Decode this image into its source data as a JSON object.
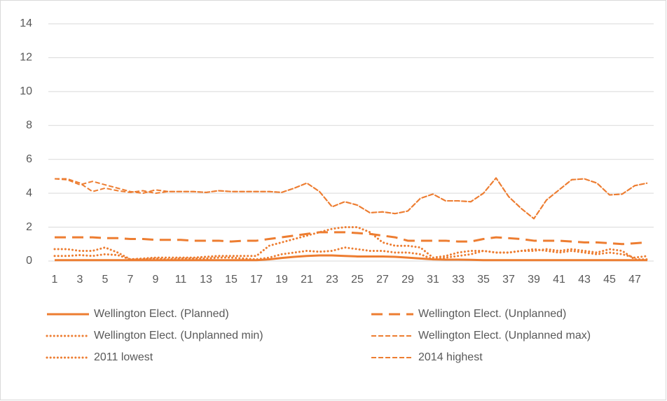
{
  "chart_data": {
    "type": "line",
    "categories": [
      "1",
      null,
      "3",
      null,
      "5",
      null,
      "7",
      null,
      "9",
      null,
      "11",
      null,
      "13",
      null,
      "15",
      null,
      "17",
      null,
      "19",
      null,
      "21",
      null,
      "23",
      null,
      "25",
      null,
      "27",
      null,
      "29",
      null,
      "31",
      null,
      "33",
      null,
      "35",
      null,
      "37",
      null,
      "39",
      null,
      "41",
      null,
      "43",
      null,
      "45",
      null,
      "47",
      null
    ],
    "ylim": [
      0,
      14
    ],
    "yticks": [
      0,
      2,
      4,
      6,
      8,
      10,
      12,
      14
    ],
    "grid": true,
    "series": [
      {
        "name": "Wellington Elect. (Planned)",
        "color": "#ED7D31",
        "line_style": "solid",
        "values": [
          0.05,
          0.05,
          0.05,
          0.05,
          0.05,
          0.05,
          0.05,
          0.05,
          0.05,
          0.05,
          0.05,
          0.05,
          0.05,
          0.05,
          0.05,
          0.05,
          0.05,
          0.1,
          0.18,
          0.25,
          0.3,
          0.33,
          0.33,
          0.3,
          0.27,
          0.27,
          0.27,
          0.25,
          0.2,
          0.15,
          0.1,
          0.08,
          0.08,
          0.07,
          0.05,
          0.05,
          0.05,
          0.05,
          0.05,
          0.05,
          0.05,
          0.05,
          0.05,
          0.05,
          0.05,
          0.05,
          0.05,
          0.05
        ]
      },
      {
        "name": "Wellington Elect. (Unplanned)",
        "color": "#ED7D31",
        "line_style": "long-dash",
        "values": [
          1.4,
          1.4,
          1.4,
          1.4,
          1.35,
          1.35,
          1.3,
          1.3,
          1.25,
          1.25,
          1.25,
          1.2,
          1.2,
          1.2,
          1.15,
          1.2,
          1.2,
          1.3,
          1.4,
          1.5,
          1.6,
          1.7,
          1.7,
          1.7,
          1.65,
          1.6,
          1.5,
          1.4,
          1.2,
          1.2,
          1.2,
          1.2,
          1.15,
          1.15,
          1.3,
          1.4,
          1.35,
          1.3,
          1.2,
          1.2,
          1.2,
          1.15,
          1.1,
          1.1,
          1.05,
          1.0,
          1.05,
          1.1
        ]
      },
      {
        "name": "Wellington Elect. (Unplanned min)",
        "color": "#ED7D31",
        "line_style": "dot",
        "values": [
          0.3,
          0.3,
          0.35,
          0.3,
          0.4,
          0.35,
          0.1,
          0.1,
          0.15,
          0.1,
          0.15,
          0.15,
          0.15,
          0.2,
          0.2,
          0.15,
          0.1,
          0.2,
          0.4,
          0.5,
          0.6,
          0.55,
          0.6,
          0.8,
          0.7,
          0.6,
          0.6,
          0.5,
          0.5,
          0.4,
          0.1,
          0.2,
          0.3,
          0.4,
          0.6,
          0.5,
          0.5,
          0.6,
          0.7,
          0.6,
          0.5,
          0.6,
          0.5,
          0.4,
          0.5,
          0.4,
          0.2,
          0.3
        ]
      },
      {
        "name": "Wellington Elect. (Unplanned max)",
        "color": "#ED7D31",
        "line_style": "dash",
        "values": [
          4.85,
          4.8,
          4.5,
          4.7,
          4.5,
          4.3,
          4.1,
          4.0,
          4.2,
          4.1,
          4.1,
          4.1,
          4.05,
          4.15,
          4.1,
          4.1,
          4.1,
          4.1,
          4.05,
          4.3,
          4.6,
          4.1,
          3.2,
          3.5,
          3.3,
          2.85,
          2.9,
          2.8,
          2.95,
          3.7,
          3.95,
          3.55,
          3.55,
          3.5,
          4.0,
          4.9,
          3.8,
          3.1,
          2.5,
          3.6,
          4.2,
          4.8,
          4.85,
          4.6,
          3.9,
          3.95,
          4.45,
          4.6
        ]
      },
      {
        "name": "2011 lowest",
        "color": "#ED7D31",
        "line_style": "dot",
        "values": [
          0.7,
          0.7,
          0.6,
          0.6,
          0.8,
          0.5,
          0.1,
          0.15,
          0.2,
          0.2,
          0.2,
          0.2,
          0.25,
          0.3,
          0.3,
          0.3,
          0.3,
          0.9,
          1.1,
          1.3,
          1.5,
          1.7,
          1.9,
          2.0,
          2.0,
          1.7,
          1.1,
          0.9,
          0.9,
          0.8,
          0.2,
          0.3,
          0.5,
          0.6,
          0.6,
          0.5,
          0.5,
          0.6,
          0.6,
          0.7,
          0.6,
          0.7,
          0.6,
          0.5,
          0.7,
          0.6,
          0.1,
          0.1
        ]
      },
      {
        "name": "2014 highest",
        "color": "#ED7D31",
        "line_style": "dash",
        "values": [
          4.85,
          4.85,
          4.6,
          4.1,
          4.3,
          4.15,
          4.05,
          4.15,
          4.0,
          4.1,
          4.1,
          4.1,
          4.05,
          4.15,
          4.1,
          4.1,
          4.1,
          4.1,
          4.05,
          4.3,
          4.6,
          4.1,
          3.2,
          3.5,
          3.3,
          2.85,
          2.9,
          2.8,
          2.95,
          3.7,
          3.95,
          3.55,
          3.55,
          3.5,
          4.0,
          4.9,
          3.8,
          3.1,
          2.5,
          3.6,
          4.2,
          4.8,
          4.85,
          4.6,
          3.9,
          3.95,
          4.45,
          4.6
        ]
      }
    ]
  }
}
